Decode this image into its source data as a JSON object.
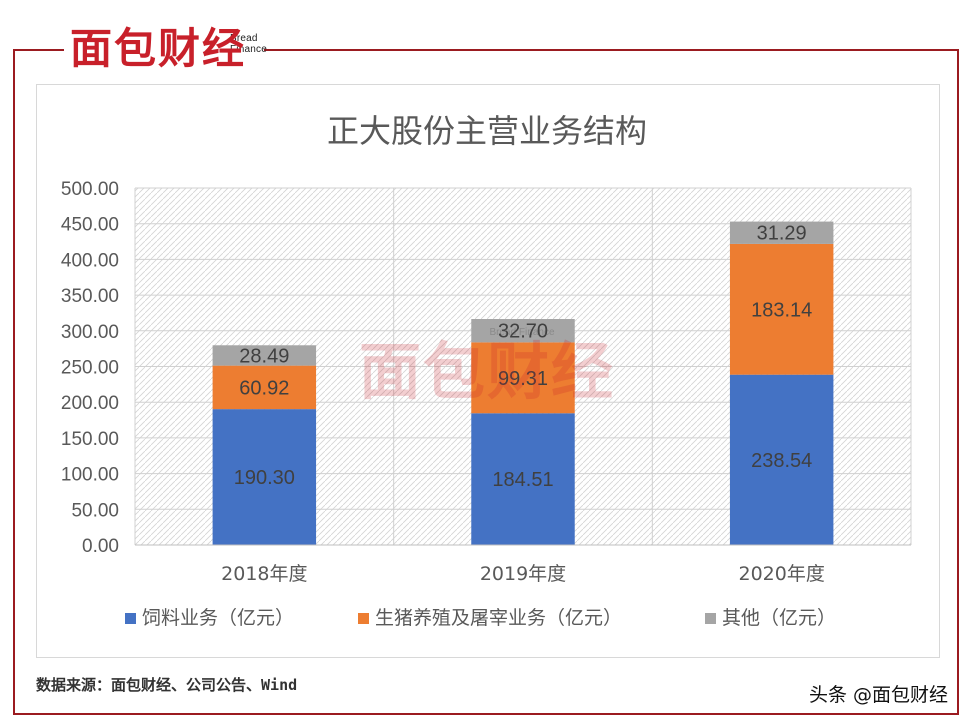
{
  "brand": {
    "name_cn": "面包财经",
    "name_en": "Bread Finance"
  },
  "chart_data": {
    "type": "bar",
    "stacked": true,
    "title": "正大股份主营业务结构",
    "categories": [
      "2018年度",
      "2019年度",
      "2020年度"
    ],
    "series": [
      {
        "name": "饲料业务（亿元）",
        "color": "#4472c4",
        "values": [
          190.3,
          184.51,
          238.54
        ],
        "labels": [
          "190.30",
          "184.51",
          "238.54"
        ]
      },
      {
        "name": "生猪养殖及屠宰业务（亿元）",
        "color": "#ed7d31",
        "values": [
          60.92,
          99.31,
          183.14
        ],
        "labels": [
          "60.92",
          "99.31",
          "183.14"
        ]
      },
      {
        "name": "其他（亿元）",
        "color": "#a5a5a5",
        "values": [
          28.49,
          32.7,
          31.29
        ],
        "labels": [
          "28.49",
          "32.70",
          "31.29"
        ]
      }
    ],
    "ylim": [
      0,
      500
    ],
    "yticks": [
      "0.00",
      "50.00",
      "100.00",
      "150.00",
      "200.00",
      "250.00",
      "300.00",
      "350.00",
      "400.00",
      "450.00",
      "500.00"
    ],
    "grid": true,
    "legend": "bottom",
    "xlabel": "",
    "ylabel": ""
  },
  "footer": {
    "source": "数据来源：面包财经、公司公告、Wind",
    "credit": "头条 @面包财经"
  },
  "colors": {
    "frame": "#9b1b20",
    "brand_red": "#c8202a",
    "text": "#595959"
  }
}
